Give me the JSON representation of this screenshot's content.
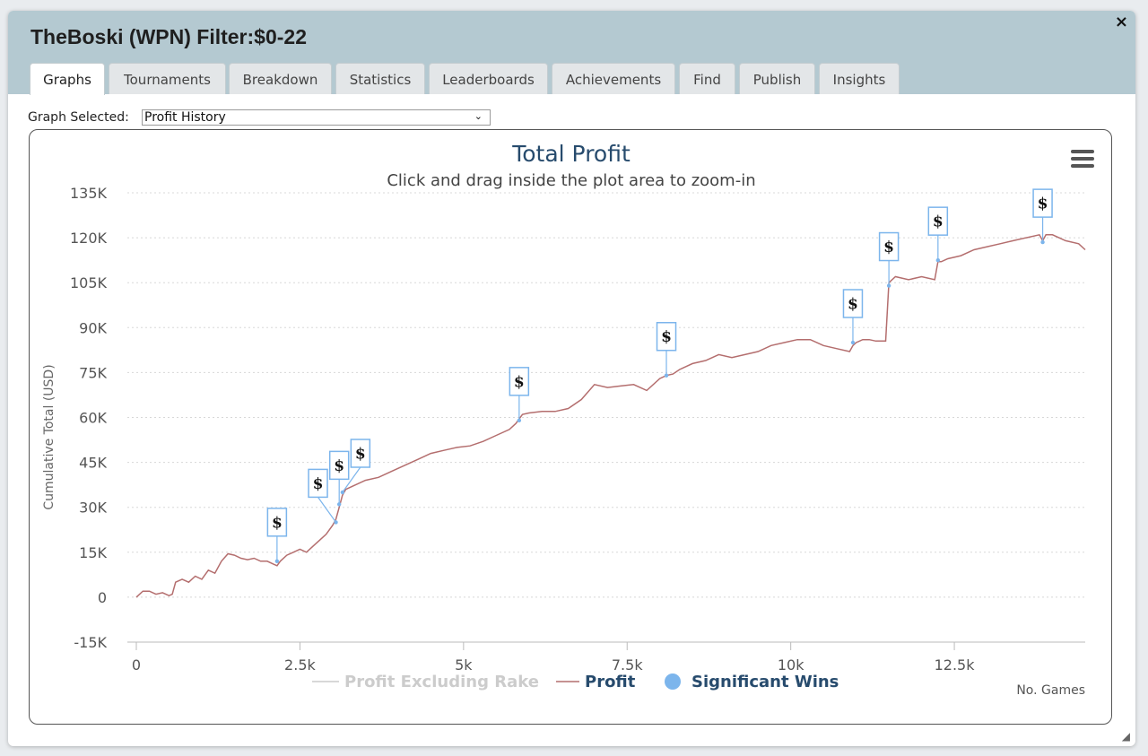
{
  "window": {
    "title": "TheBoski (WPN) Filter:$0-22",
    "close_label": "×"
  },
  "tabs": [
    {
      "label": "Graphs",
      "active": true
    },
    {
      "label": "Tournaments"
    },
    {
      "label": "Breakdown"
    },
    {
      "label": "Statistics"
    },
    {
      "label": "Leaderboards"
    },
    {
      "label": "Achievements"
    },
    {
      "label": "Find"
    },
    {
      "label": "Publish"
    },
    {
      "label": "Insights"
    }
  ],
  "graph_select": {
    "label": "Graph Selected:",
    "value": "Profit History"
  },
  "chart_data": {
    "type": "line",
    "title": "Total Profit",
    "subtitle": "Click and drag inside the plot area to zoom-in",
    "xlabel": "No. Games",
    "ylabel": "Cumulative Total (USD)",
    "xlim": [
      0,
      14500
    ],
    "ylim": [
      -15000,
      135000
    ],
    "x_ticks": [
      0,
      2500,
      5000,
      7500,
      10000,
      12500
    ],
    "x_tick_labels": [
      "0",
      "2.5k",
      "5k",
      "7.5k",
      "10k",
      "12.5k"
    ],
    "y_ticks": [
      -15000,
      0,
      15000,
      30000,
      45000,
      60000,
      75000,
      90000,
      105000,
      120000,
      135000
    ],
    "y_tick_labels": [
      "-15K",
      "0",
      "15K",
      "30K",
      "45K",
      "60K",
      "75K",
      "90K",
      "105K",
      "120K",
      "135K"
    ],
    "grid": "horizontal-dotted",
    "legend_position": "bottom",
    "legend": [
      {
        "name": "Profit Excluding Rake",
        "color": "#cccccc",
        "kind": "line",
        "hidden": true
      },
      {
        "name": "Profit",
        "color": "#b46e6e",
        "kind": "line"
      },
      {
        "name": "Significant Wins",
        "color": "#7cb5ec",
        "kind": "marker"
      }
    ],
    "series": [
      {
        "name": "Profit",
        "color": "#b46e6e",
        "x": [
          0,
          100,
          200,
          300,
          400,
          500,
          550,
          600,
          700,
          800,
          900,
          1000,
          1100,
          1200,
          1300,
          1400,
          1500,
          1600,
          1700,
          1800,
          1900,
          2000,
          2100,
          2150,
          2200,
          2300,
          2400,
          2500,
          2600,
          2700,
          2800,
          2900,
          3000,
          3050,
          3100,
          3150,
          3200,
          3300,
          3500,
          3700,
          3900,
          4100,
          4300,
          4500,
          4700,
          4900,
          5100,
          5300,
          5500,
          5700,
          5800,
          5900,
          6000,
          6200,
          6400,
          6600,
          6800,
          7000,
          7200,
          7400,
          7600,
          7800,
          8000,
          8100,
          8200,
          8300,
          8500,
          8700,
          8900,
          9100,
          9300,
          9500,
          9700,
          9900,
          10100,
          10300,
          10500,
          10700,
          10900,
          10950,
          11000,
          11100,
          11200,
          11300,
          11450,
          11500,
          11600,
          11800,
          12000,
          12200,
          12250,
          12300,
          12400,
          12600,
          12800,
          13000,
          13200,
          13400,
          13600,
          13800,
          13850,
          13900,
          14000,
          14200,
          14400,
          14500
        ],
        "y": [
          0,
          2000,
          2000,
          1000,
          1500,
          500,
          1000,
          5000,
          6000,
          5000,
          7000,
          6000,
          9000,
          8000,
          12000,
          14500,
          14000,
          13000,
          12500,
          13000,
          12000,
          12000,
          11000,
          10500,
          12000,
          14000,
          15000,
          16000,
          15000,
          17000,
          19000,
          21000,
          24000,
          26000,
          30000,
          34000,
          36000,
          37000,
          39000,
          40000,
          42000,
          44000,
          46000,
          48000,
          49000,
          50000,
          50500,
          52000,
          54000,
          56000,
          58000,
          61000,
          61500,
          62000,
          62000,
          63000,
          66000,
          71000,
          70000,
          70500,
          71000,
          69000,
          73000,
          74000,
          74500,
          76000,
          78000,
          79000,
          81000,
          80000,
          81000,
          82000,
          84000,
          85000,
          86000,
          86000,
          84000,
          83000,
          82000,
          84000,
          85000,
          86000,
          86000,
          85500,
          85500,
          105000,
          107000,
          106000,
          107000,
          106000,
          112000,
          112000,
          113000,
          114000,
          116000,
          117000,
          118000,
          119000,
          120000,
          121000,
          119000,
          121000,
          121000,
          119000,
          118000,
          116000
        ]
      }
    ],
    "significant_wins": [
      {
        "x": 2150,
        "y": 12000,
        "label": "$"
      },
      {
        "x": 3050,
        "y": 25000,
        "label": "$"
      },
      {
        "x": 3100,
        "y": 31000,
        "label": "$"
      },
      {
        "x": 3150,
        "y": 35000,
        "label": "$"
      },
      {
        "x": 5850,
        "y": 59000,
        "label": "$"
      },
      {
        "x": 8100,
        "y": 74000,
        "label": "$"
      },
      {
        "x": 10950,
        "y": 85000,
        "label": "$"
      },
      {
        "x": 11500,
        "y": 104000,
        "label": "$"
      },
      {
        "x": 12250,
        "y": 112500,
        "label": "$"
      },
      {
        "x": 13850,
        "y": 118500,
        "label": "$"
      }
    ]
  }
}
